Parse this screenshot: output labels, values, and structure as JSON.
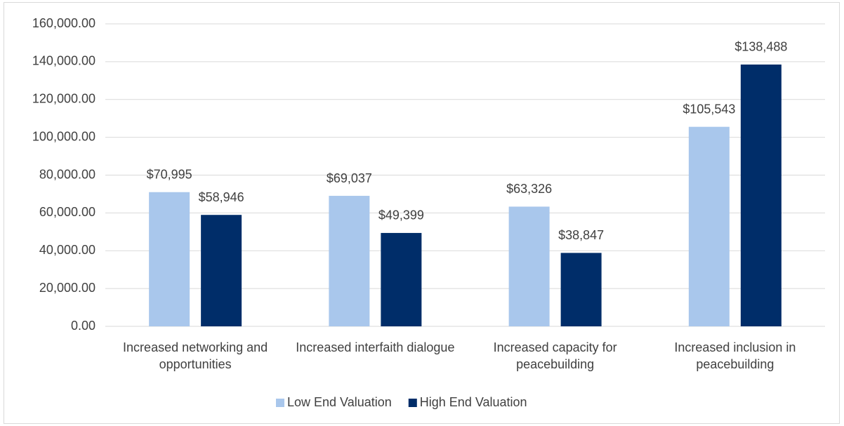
{
  "chart_data": {
    "type": "bar",
    "categories": [
      "Increased networking and opportunities",
      "Increased interfaith dialogue",
      "Increased capacity for peacebuilding",
      "Increased inclusion in peacebuilding"
    ],
    "series": [
      {
        "name": "Low End Valuation",
        "color": "#a9c7ec",
        "values": [
          70995,
          69037,
          63326,
          105543
        ],
        "value_labels": [
          "$70,995",
          "$69,037",
          "$63,326",
          "$105,543"
        ]
      },
      {
        "name": "High End Valuation",
        "color": "#002d69",
        "values": [
          58946,
          49399,
          38847,
          138488
        ],
        "value_labels": [
          "$58,946",
          "$49,399",
          "$38,847",
          "$138,488"
        ]
      }
    ],
    "ylim": [
      0,
      160000
    ],
    "yticks": [
      {
        "value": 0,
        "label": "0.00"
      },
      {
        "value": 20000,
        "label": "20,000.00"
      },
      {
        "value": 40000,
        "label": "40,000.00"
      },
      {
        "value": 60000,
        "label": "60,000.00"
      },
      {
        "value": 80000,
        "label": "80,000.00"
      },
      {
        "value": 100000,
        "label": "100,000.00"
      },
      {
        "value": 120000,
        "label": "120,000.00"
      },
      {
        "value": 140000,
        "label": "140,000.00"
      },
      {
        "value": 160000,
        "label": "160,000.00"
      }
    ],
    "grid": true,
    "legend": "bottom"
  }
}
